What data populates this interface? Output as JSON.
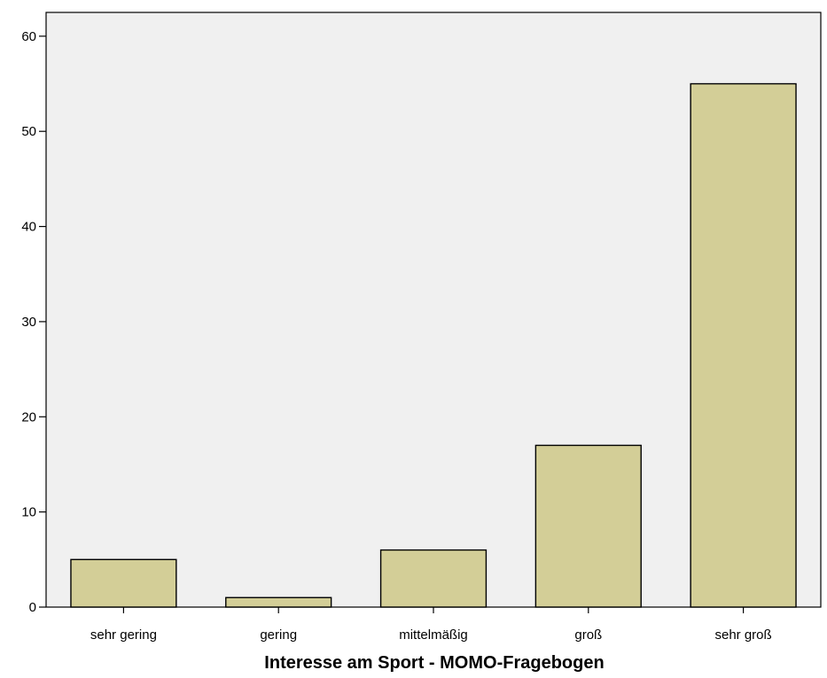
{
  "chart_data": {
    "type": "bar",
    "title": "",
    "xlabel": "Interesse am Sport - MOMO-Fragebogen",
    "ylabel": "",
    "categories": [
      "sehr gering",
      "gering",
      "mittelmäßig",
      "groß",
      "sehr groß"
    ],
    "values": [
      5,
      1,
      6,
      17,
      55
    ],
    "ylim": [
      0,
      62.5
    ],
    "yticks": [
      "0",
      "10",
      "20",
      "30",
      "40",
      "50",
      "60"
    ],
    "grid": false,
    "legend": "none",
    "colors": {
      "plot_background": "#f0f0f0",
      "bar_fill": "#d3ce97",
      "bar_stroke": "#000000"
    }
  }
}
